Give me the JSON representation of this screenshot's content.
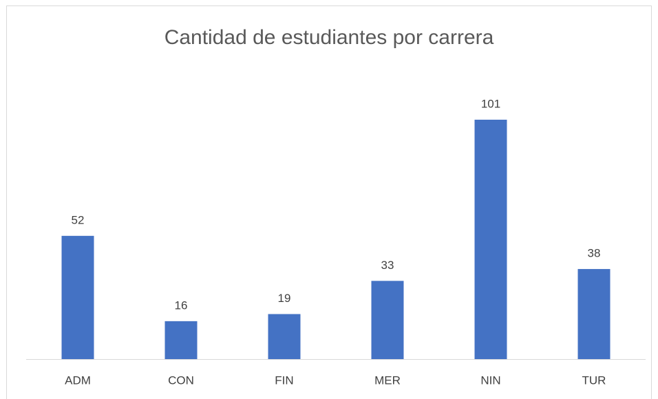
{
  "chart_data": {
    "type": "bar",
    "title": "Cantidad de estudiantes por carrera",
    "categories": [
      "ADM",
      "CON",
      "FIN",
      "MER",
      "NIN",
      "TUR"
    ],
    "values": [
      52,
      16,
      19,
      33,
      101,
      38
    ],
    "color": "#4472c4"
  }
}
